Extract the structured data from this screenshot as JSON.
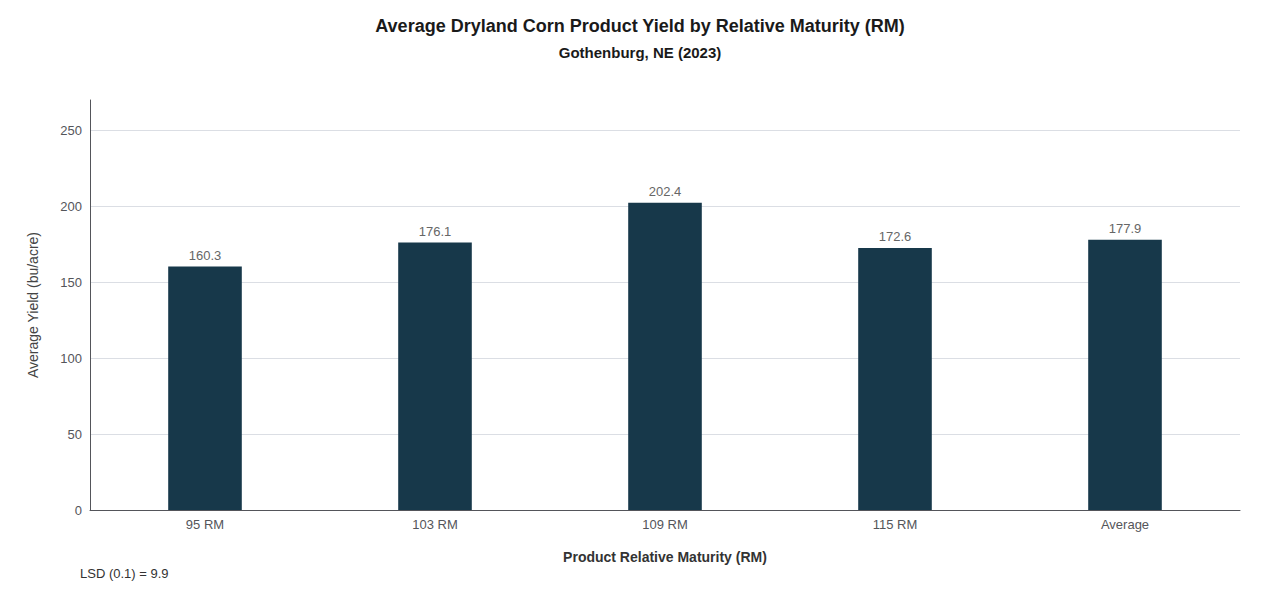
{
  "chart_data": {
    "type": "bar",
    "title": "Average Dryland Corn Product Yield by Relative Maturity (RM)",
    "subtitle": "Gothenburg, NE (2023)",
    "categories": [
      "95 RM",
      "103 RM",
      "109 RM",
      "115 RM",
      "Average"
    ],
    "values": [
      160.3,
      176.1,
      202.4,
      172.6,
      177.9
    ],
    "color": "#17384a",
    "xlabel": "Product Relative Maturity (RM)",
    "ylabel": "Average Yield (bu/acre)",
    "annotations": [
      "LSD (0.1) = 9.9"
    ],
    "ylim": [
      0,
      270
    ],
    "yticks": [
      0,
      50,
      100,
      150,
      200,
      250
    ],
    "grid": true,
    "data_labels": true
  }
}
